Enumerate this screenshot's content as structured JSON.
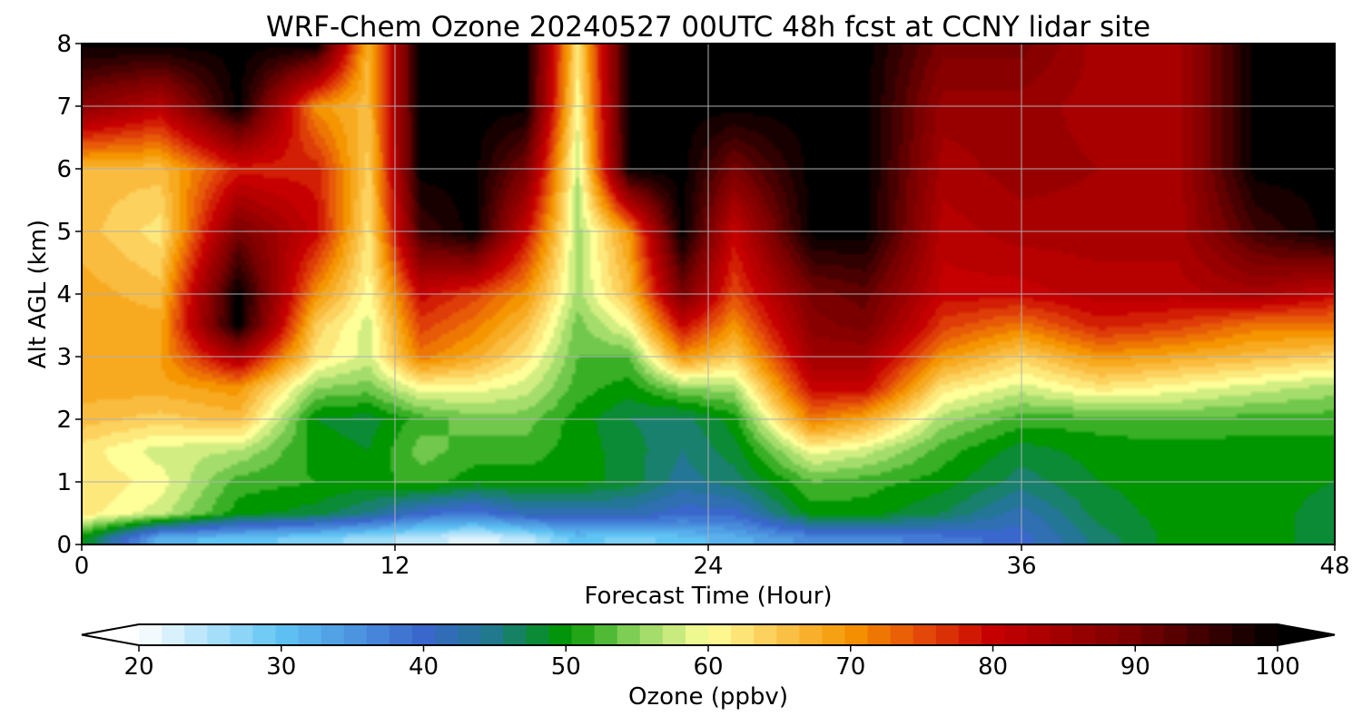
{
  "chart_data": {
    "type": "heatmap",
    "title": "WRF-Chem Ozone  20240527 00UTC 48h fcst at CCNY lidar site",
    "xlabel": "Forecast Time (Hour)",
    "ylabel": "Alt AGL (km)",
    "xlim": [
      0,
      48
    ],
    "ylim": [
      0,
      8
    ],
    "x_ticks": [
      0,
      12,
      24,
      36,
      48
    ],
    "y_ticks": [
      0,
      1,
      2,
      3,
      4,
      5,
      6,
      7,
      8
    ],
    "grid": true,
    "colorbar": {
      "label": "Ozone  (ppbv)",
      "range": [
        20,
        100
      ],
      "extend": "both",
      "ticks": [
        20,
        30,
        40,
        50,
        60,
        70,
        80,
        90,
        100
      ],
      "color_stops": [
        {
          "value": 20,
          "color": "#ffffff"
        },
        {
          "value": 30,
          "color": "#5fc4f4"
        },
        {
          "value": 40,
          "color": "#3a67cc"
        },
        {
          "value": 45,
          "color": "#1f7a8a"
        },
        {
          "value": 50,
          "color": "#009600"
        },
        {
          "value": 55,
          "color": "#8fd460"
        },
        {
          "value": 60,
          "color": "#ffff9a"
        },
        {
          "value": 65,
          "color": "#fbc64e"
        },
        {
          "value": 70,
          "color": "#f59500"
        },
        {
          "value": 75,
          "color": "#e44b0a"
        },
        {
          "value": 80,
          "color": "#c60000"
        },
        {
          "value": 90,
          "color": "#7a0000"
        },
        {
          "value": 100,
          "color": "#000000"
        }
      ]
    },
    "heights_km": [
      0.1,
      0.5,
      1.0,
      1.5,
      2.0,
      2.5,
      3.0,
      3.5,
      4.0,
      5.0,
      6.0,
      7.0,
      8.0
    ],
    "columns": [
      {
        "hour": 0,
        "ozone_ppbv": [
          50,
          62,
          63,
          62,
          66,
          68,
          68,
          68,
          68,
          66,
          66,
          88,
          100
        ]
      },
      {
        "hour": 3,
        "ozone_ppbv": [
          32,
          58,
          60,
          58,
          64,
          68,
          69,
          68,
          66,
          62,
          66,
          82,
          100
        ]
      },
      {
        "hour": 6,
        "ozone_ppbv": [
          30,
          50,
          52,
          57,
          66,
          70,
          84,
          100,
          100,
          90,
          78,
          100,
          100
        ]
      },
      {
        "hour": 9,
        "ozone_ppbv": [
          28,
          48,
          51,
          50,
          49,
          55,
          62,
          64,
          70,
          80,
          78,
          70,
          100
        ]
      },
      {
        "hour": 11,
        "ozone_ppbv": [
          26,
          45,
          50,
          49,
          48,
          54,
          58,
          58,
          60,
          62,
          64,
          66,
          66
        ]
      },
      {
        "hour": 13,
        "ozone_ppbv": [
          24,
          40,
          52,
          54,
          52,
          60,
          72,
          76,
          80,
          95,
          100,
          100,
          100
        ]
      },
      {
        "hour": 15,
        "ozone_ppbv": [
          22,
          38,
          50,
          52,
          54,
          60,
          68,
          72,
          76,
          100,
          100,
          100,
          100
        ]
      },
      {
        "hour": 17,
        "ozone_ppbv": [
          24,
          42,
          50,
          52,
          54,
          58,
          62,
          66,
          70,
          80,
          90,
          100,
          100
        ]
      },
      {
        "hour": 19,
        "ozone_ppbv": [
          30,
          42,
          50,
          50,
          50,
          52,
          53,
          54,
          56,
          56,
          57,
          60,
          62
        ]
      },
      {
        "hour": 21,
        "ozone_ppbv": [
          28,
          42,
          48,
          48,
          47,
          50,
          53,
          60,
          66,
          70,
          100,
          100,
          100
        ]
      },
      {
        "hour": 23,
        "ozone_ppbv": [
          30,
          40,
          44,
          45,
          46,
          55,
          70,
          80,
          90,
          100,
          100,
          100,
          100
        ]
      },
      {
        "hour": 25,
        "ozone_ppbv": [
          32,
          40,
          46,
          48,
          50,
          56,
          64,
          70,
          75,
          80,
          90,
          100,
          100
        ]
      },
      {
        "hour": 28,
        "ozone_ppbv": [
          36,
          50,
          53,
          60,
          72,
          80,
          85,
          88,
          90,
          100,
          100,
          100,
          100
        ]
      },
      {
        "hour": 30,
        "ozone_ppbv": [
          36,
          50,
          52,
          58,
          68,
          80,
          85,
          90,
          92,
          100,
          100,
          100,
          100
        ]
      },
      {
        "hour": 33,
        "ozone_ppbv": [
          38,
          47,
          50,
          52,
          56,
          62,
          70,
          76,
          80,
          82,
          84,
          86,
          90
        ]
      },
      {
        "hour": 36,
        "ozone_ppbv": [
          40,
          42,
          46,
          48,
          52,
          58,
          64,
          72,
          80,
          84,
          86,
          86,
          90
        ]
      },
      {
        "hour": 39,
        "ozone_ppbv": [
          46,
          48,
          49,
          50,
          52,
          62,
          70,
          78,
          82,
          84,
          85,
          84,
          84
        ]
      },
      {
        "hour": 42,
        "ozone_ppbv": [
          50,
          50,
          50,
          50,
          53,
          60,
          68,
          76,
          82,
          84,
          84,
          84,
          84
        ]
      },
      {
        "hour": 45,
        "ozone_ppbv": [
          50,
          50,
          50,
          50,
          52,
          58,
          66,
          72,
          84,
          95,
          100,
          100,
          100
        ]
      },
      {
        "hour": 48,
        "ozone_ppbv": [
          48,
          48,
          49,
          50,
          52,
          56,
          64,
          72,
          80,
          100,
          100,
          100,
          100
        ]
      }
    ]
  }
}
